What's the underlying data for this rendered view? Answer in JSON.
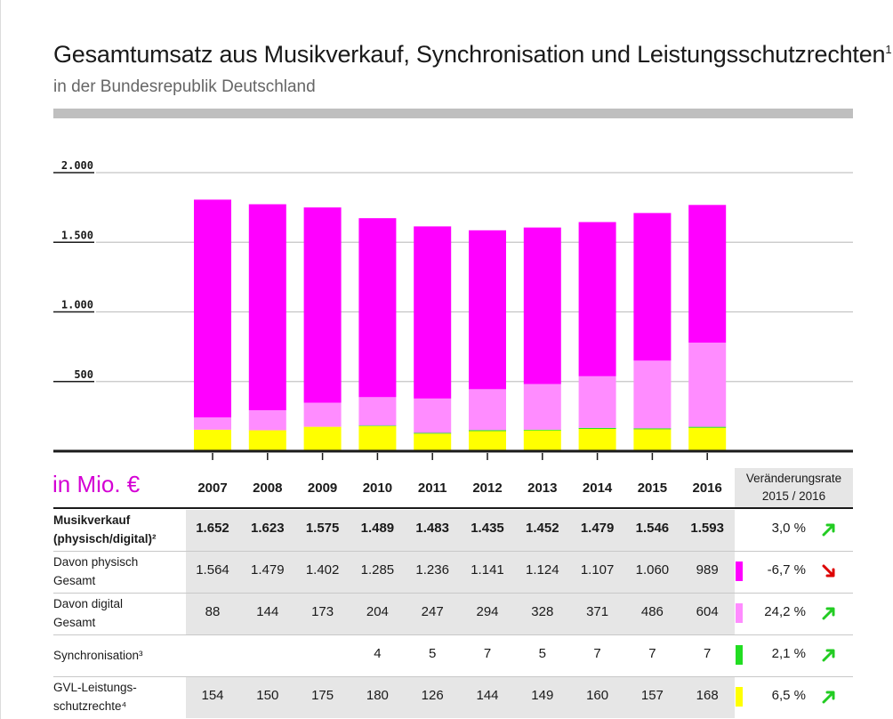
{
  "title": "Gesamtumsatz aus Musikverkauf, Synchronisation und Leistungsschutzrechten",
  "title_footnote": "1",
  "subtitle": "in der Bundesrepublik Deutschland",
  "unit_label": "in Mio. €",
  "rate_header": {
    "line1": "Veränderungsrate",
    "line2": "2015 / 2016"
  },
  "colors": {
    "physisch": "#ff00ff",
    "digital": "#ff8cff",
    "synchronisation": "#22dd22",
    "gvl": "#ffff00",
    "arrow_up": "#22cc22",
    "arrow_down": "#dd0000"
  },
  "chart_data": {
    "type": "bar",
    "stacked": true,
    "categories": [
      "2007",
      "2008",
      "2009",
      "2010",
      "2011",
      "2012",
      "2013",
      "2014",
      "2015",
      "2016"
    ],
    "ylim": [
      0,
      2000
    ],
    "yticks": [
      "500",
      "1.000",
      "1.500",
      "2.000"
    ],
    "ytick_values": [
      500,
      1000,
      1500,
      2000
    ],
    "grid": true,
    "series": [
      {
        "key": "gvl",
        "color": "#ffff00",
        "values": [
          154,
          150,
          175,
          180,
          126,
          144,
          149,
          160,
          157,
          168
        ]
      },
      {
        "key": "synchronisation",
        "color": "#22dd22",
        "values": [
          0,
          0,
          0,
          4,
          5,
          7,
          5,
          7,
          7,
          7
        ]
      },
      {
        "key": "digital",
        "color": "#ff8cff",
        "values": [
          88,
          144,
          173,
          204,
          247,
          294,
          328,
          371,
          486,
          604
        ]
      },
      {
        "key": "physisch",
        "color": "#ff00ff",
        "values": [
          1564,
          1479,
          1402,
          1285,
          1236,
          1141,
          1124,
          1107,
          1060,
          989
        ]
      }
    ]
  },
  "table": {
    "rows": [
      {
        "label1": "Musikverkauf",
        "label2": "(physisch/digital)²",
        "bold": true,
        "values": [
          "1.652",
          "1.623",
          "1.575",
          "1.489",
          "1.483",
          "1.435",
          "1.452",
          "1.479",
          "1.546",
          "1.593"
        ],
        "rate": "3,0 %",
        "direction": "up",
        "swatch": ""
      },
      {
        "label1": "Davon physisch",
        "label2": "Gesamt",
        "bold": false,
        "values": [
          "1.564",
          "1.479",
          "1.402",
          "1.285",
          "1.236",
          "1.141",
          "1.124",
          "1.107",
          "1.060",
          "989"
        ],
        "rate": "-6,7 %",
        "direction": "down",
        "swatch": "#ff00ff"
      },
      {
        "label1": "Davon digital",
        "label2": "Gesamt",
        "bold": false,
        "values": [
          "88",
          "144",
          "173",
          "204",
          "247",
          "294",
          "328",
          "371",
          "486",
          "604"
        ],
        "rate": "24,2 %",
        "direction": "up",
        "swatch": "#ff8cff"
      },
      {
        "label1": "Synchronisation³",
        "label2": "",
        "bold": false,
        "values": [
          "",
          "",
          "",
          "4",
          "5",
          "7",
          "5",
          "7",
          "7",
          "7"
        ],
        "rate": "2,1 %",
        "direction": "up",
        "swatch": "#22dd22"
      },
      {
        "label1": "GVL-Leistungs-",
        "label2": "schutzrechte⁴",
        "bold": false,
        "values": [
          "154",
          "150",
          "175",
          "180",
          "126",
          "144",
          "149",
          "160",
          "157",
          "168"
        ],
        "rate": "6,5 %",
        "direction": "up",
        "swatch": "#ffff00"
      }
    ]
  }
}
